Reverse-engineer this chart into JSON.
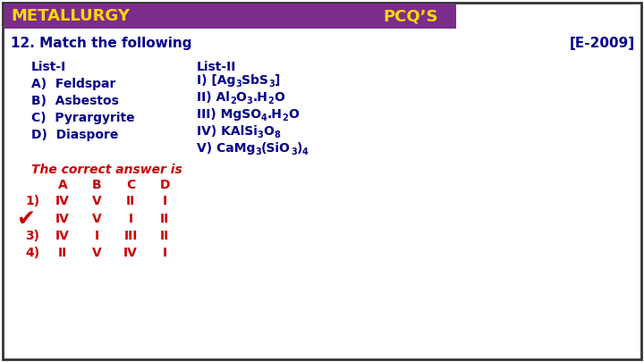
{
  "title_text": "METALLURGY",
  "pcq_text": "PCQ’S",
  "header_bg": "#7B2D8B",
  "header_text_color": "#FFD700",
  "outer_bg": "#FFFFFF",
  "border_color": "#333333",
  "question_number": "12. Match the following",
  "year_tag": "[E-2009]",
  "dark_blue": "#00008B",
  "red_color": "#CC0000",
  "list1_header": "List-I",
  "list2_header": "List-II",
  "list1_items": [
    "A)  Feldspar",
    "B)  Asbestos",
    "C)  Pyrargyrite",
    "D)  Diaspore"
  ],
  "correct_answer_text": "The correct answer is"
}
